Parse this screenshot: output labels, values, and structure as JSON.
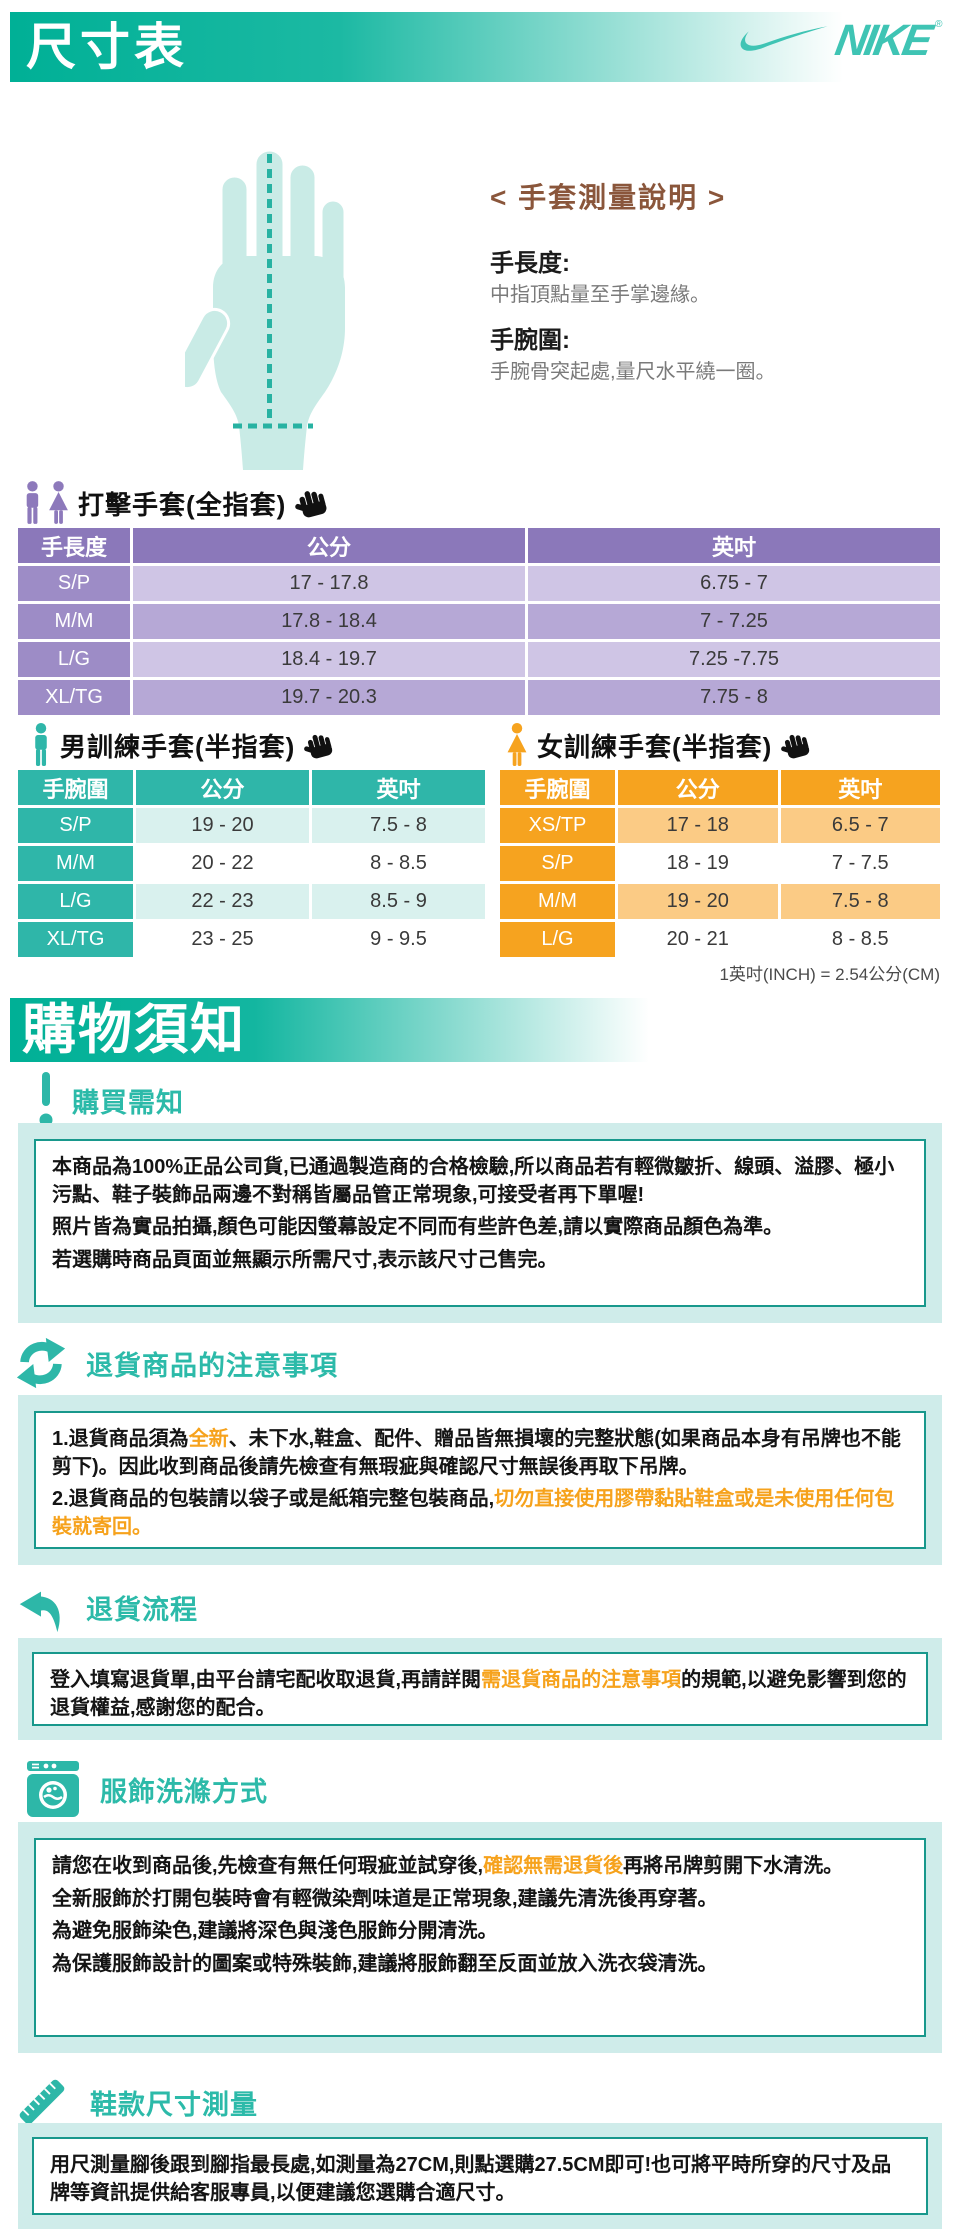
{
  "colors": {
    "teal": "#00b096",
    "teal_icon": "#2db7a8",
    "purple": "#8b78ba",
    "orange": "#f6a31f",
    "brown_title": "#8a563b",
    "highlight": "#f6a21c",
    "box_bg": "#cfecea"
  },
  "header": {
    "title": "尺寸表",
    "brand": "NIKE"
  },
  "glove_guide": {
    "title": "< 手套測量說明 >",
    "items": [
      {
        "label": "手長度:",
        "desc": "中指頂點量至手掌邊緣。"
      },
      {
        "label": "手腕圍:",
        "desc": "手腕骨突起處,量尺水平繞一圈。"
      }
    ]
  },
  "size_tables": {
    "batting": {
      "title": "打擊手套(全指套)",
      "headers": [
        "手長度",
        "公分",
        "英吋"
      ],
      "rows": [
        [
          "S/P",
          "17 - 17.8",
          "6.75 - 7"
        ],
        [
          "M/M",
          "17.8 - 18.4",
          "7 - 7.25"
        ],
        [
          "L/G",
          "18.4 - 19.7",
          "7.25 -7.75"
        ],
        [
          "XL/TG",
          "19.7 - 20.3",
          "7.75 - 8"
        ]
      ]
    },
    "men_training": {
      "title": "男訓練手套(半指套)",
      "headers": [
        "手腕圍",
        "公分",
        "英吋"
      ],
      "rows": [
        [
          "S/P",
          "19 - 20",
          "7.5 - 8"
        ],
        [
          "M/M",
          "20 - 22",
          "8 - 8.5"
        ],
        [
          "L/G",
          "22 - 23",
          "8.5 - 9"
        ],
        [
          "XL/TG",
          "23 - 25",
          "9 - 9.5"
        ]
      ]
    },
    "women_training": {
      "title": "女訓練手套(半指套)",
      "headers": [
        "手腕圍",
        "公分",
        "英吋"
      ],
      "rows": [
        [
          "XS/TP",
          "17 - 18",
          "6.5 - 7"
        ],
        [
          "S/P",
          "18 - 19",
          "7 - 7.5"
        ],
        [
          "M/M",
          "19 - 20",
          "7.5 - 8"
        ],
        [
          "L/G",
          "20 - 21",
          "8 - 8.5"
        ]
      ]
    },
    "unit_note": "1英吋(INCH) = 2.54公分(CM)"
  },
  "notice": {
    "banner": "購物須知",
    "sections": [
      {
        "title": "購買需知",
        "icon": "exclamation-icon",
        "paragraphs": [
          [
            {
              "text": "本商品為100%正品公司貨,已通過製造商的合格檢驗,所以商品若有輕微皺折、線頭、溢膠、極小污點、鞋子裝飾品兩邊不對稱皆屬品管正常現象,可接受者再下單喔!"
            }
          ],
          [
            {
              "text": "照片皆為實品拍攝,顏色可能因螢幕設定不同而有些許色差,請以實際商品顏色為準。"
            }
          ],
          [
            {
              "text": "若選購時商品頁面並無顯示所需尺寸,表示該尺寸己售完。"
            }
          ]
        ]
      },
      {
        "title": "退貨商品的注意事項",
        "icon": "recycle-arrows-icon",
        "paragraphs": [
          [
            {
              "text": "1.退貨商品須為"
            },
            {
              "text": "全新",
              "highlight": true
            },
            {
              "text": "、未下水,鞋盒、配件、贈品皆無損壞的完整狀態(如果商品本身有吊牌也不能剪下)。因此收到商品後請先檢查有無瑕疵與確認尺寸無誤後再取下吊牌。"
            }
          ],
          [
            {
              "text": "2.退貨商品的包裝請以袋子或是紙箱完整包裝商品,"
            },
            {
              "text": "切勿直接使用膠帶黏貼鞋盒或是未使用任何包裝就寄回。",
              "highlight": true
            }
          ]
        ]
      },
      {
        "title": "退貨流程",
        "icon": "return-arrow-icon",
        "paragraphs": [
          [
            {
              "text": "登入填寫退貨單,由平台請宅配收取退貨,再請詳閱"
            },
            {
              "text": "需退貨商品的注意事項",
              "highlight": true
            },
            {
              "text": "的規範,以避免影響到您的退貨權益,感謝您的配合。"
            }
          ]
        ]
      },
      {
        "title": "服飾洗滌方式",
        "icon": "washing-machine-icon",
        "paragraphs": [
          [
            {
              "text": "請您在收到商品後,先檢查有無任何瑕疵並試穿後,"
            },
            {
              "text": "確認無需退貨後",
              "highlight": true
            },
            {
              "text": "再將吊牌剪開下水清洗。"
            }
          ],
          [
            {
              "text": "全新服飾於打開包裝時會有輕微染劑味道是正常現象,建議先清洗後再穿著。"
            }
          ],
          [
            {
              "text": "為避免服飾染色,建議將深色與淺色服飾分開清洗。"
            }
          ],
          [
            {
              "text": "為保護服飾設計的圖案或特殊裝飾,建議將服飾翻至反面並放入洗衣袋清洗。"
            }
          ]
        ]
      },
      {
        "title": "鞋款尺寸測量",
        "icon": "ruler-icon",
        "paragraphs": [
          [
            {
              "text": "用尺測量腳後跟到腳指最長處,如測量為27CM,則點選購27.5CM即可!也可將平時所穿的尺寸及品牌等資訊提供給客服專員,以便建議您選購合適尺寸。"
            }
          ]
        ]
      }
    ]
  }
}
